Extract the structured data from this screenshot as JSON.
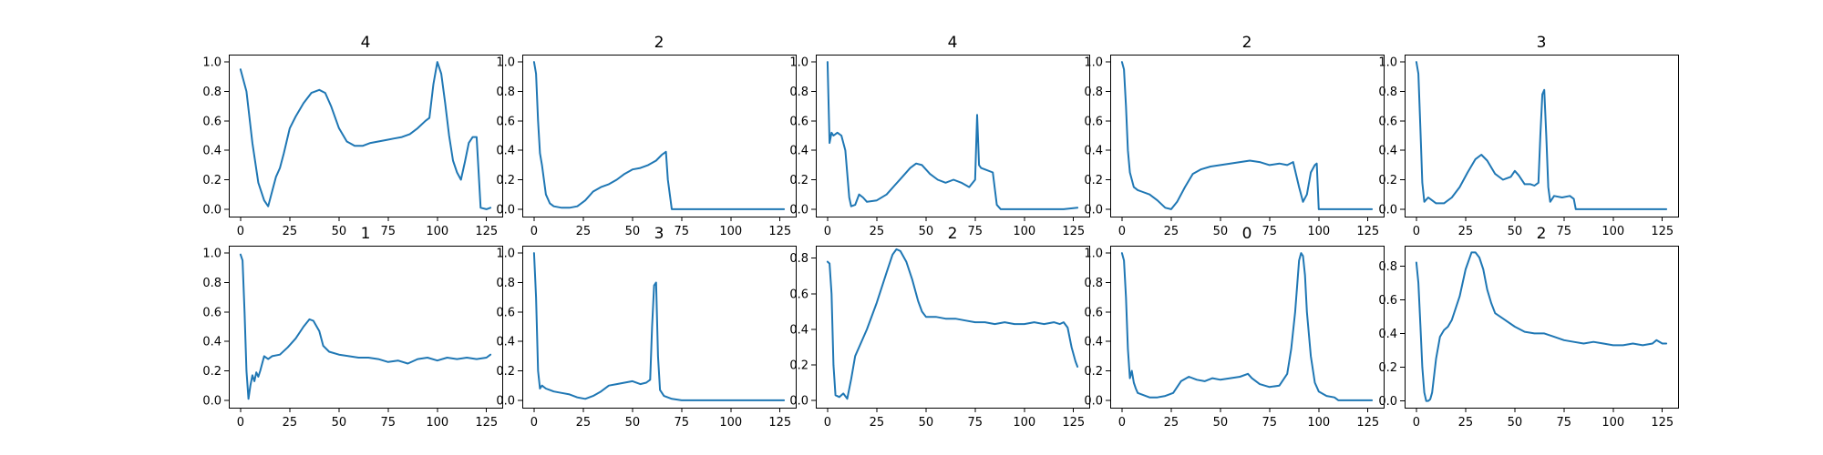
{
  "colors": {
    "series": "#1f77b4"
  },
  "chart_data": [
    {
      "type": "line",
      "title": "4",
      "xlim": [
        -6,
        133
      ],
      "ylim": [
        -0.05,
        1.05
      ],
      "xticks": [
        0,
        25,
        50,
        75,
        100,
        125
      ],
      "yticks": [
        0.0,
        0.2,
        0.4,
        0.6,
        0.8,
        1.0
      ],
      "series": [
        {
          "x": [
            0,
            3,
            6,
            9,
            12,
            14,
            16,
            18,
            20,
            22,
            25,
            28,
            32,
            36,
            40,
            43,
            46,
            50,
            54,
            58,
            62,
            66,
            70,
            74,
            78,
            82,
            86,
            90,
            94,
            96,
            98,
            100,
            102,
            104,
            106,
            108,
            110,
            112,
            114,
            116,
            118,
            120,
            122,
            125,
            127
          ],
          "y": [
            0.95,
            0.8,
            0.45,
            0.18,
            0.06,
            0.02,
            0.12,
            0.22,
            0.28,
            0.38,
            0.55,
            0.63,
            0.72,
            0.79,
            0.81,
            0.79,
            0.7,
            0.55,
            0.46,
            0.43,
            0.43,
            0.45,
            0.46,
            0.47,
            0.48,
            0.49,
            0.51,
            0.55,
            0.6,
            0.62,
            0.85,
            1.0,
            0.92,
            0.72,
            0.5,
            0.33,
            0.25,
            0.2,
            0.32,
            0.45,
            0.49,
            0.49,
            0.01,
            0.0,
            0.01
          ]
        }
      ]
    },
    {
      "type": "line",
      "title": "2",
      "xlim": [
        -6,
        133
      ],
      "ylim": [
        -0.05,
        1.05
      ],
      "xticks": [
        0,
        25,
        50,
        75,
        100,
        125
      ],
      "yticks": [
        0.0,
        0.2,
        0.4,
        0.6,
        0.8,
        1.0
      ],
      "series": [
        {
          "x": [
            0,
            1,
            2,
            3,
            4,
            6,
            8,
            10,
            14,
            18,
            22,
            26,
            30,
            34,
            38,
            42,
            46,
            50,
            54,
            58,
            62,
            65,
            67,
            68,
            70,
            80,
            90,
            100,
            110,
            120,
            127
          ],
          "y": [
            1.0,
            0.92,
            0.6,
            0.38,
            0.3,
            0.1,
            0.04,
            0.02,
            0.01,
            0.01,
            0.02,
            0.06,
            0.12,
            0.15,
            0.17,
            0.2,
            0.24,
            0.27,
            0.28,
            0.3,
            0.33,
            0.37,
            0.39,
            0.2,
            0.0,
            0.0,
            0.0,
            0.0,
            0.0,
            0.0,
            0.0
          ]
        }
      ]
    },
    {
      "type": "line",
      "title": "4",
      "xlim": [
        -6,
        133
      ],
      "ylim": [
        -0.05,
        1.05
      ],
      "xticks": [
        0,
        25,
        50,
        75,
        100,
        125
      ],
      "yticks": [
        0.0,
        0.2,
        0.4,
        0.6,
        0.8,
        1.0
      ],
      "series": [
        {
          "x": [
            0,
            1,
            2,
            3,
            5,
            7,
            9,
            11,
            12,
            14,
            16,
            18,
            20,
            25,
            30,
            34,
            38,
            42,
            45,
            48,
            52,
            56,
            60,
            64,
            68,
            72,
            75,
            76,
            77,
            78,
            80,
            84,
            86,
            88,
            90,
            100,
            110,
            120,
            127
          ],
          "y": [
            1.0,
            0.45,
            0.52,
            0.5,
            0.52,
            0.5,
            0.4,
            0.08,
            0.02,
            0.03,
            0.1,
            0.08,
            0.05,
            0.06,
            0.1,
            0.16,
            0.22,
            0.28,
            0.31,
            0.3,
            0.24,
            0.2,
            0.18,
            0.2,
            0.18,
            0.15,
            0.2,
            0.64,
            0.3,
            0.28,
            0.27,
            0.25,
            0.03,
            0.0,
            0.0,
            0.0,
            0.0,
            0.0,
            0.01
          ]
        }
      ]
    },
    {
      "type": "line",
      "title": "2",
      "xlim": [
        -6,
        133
      ],
      "ylim": [
        -0.05,
        1.05
      ],
      "xticks": [
        0,
        25,
        50,
        75,
        100,
        125
      ],
      "yticks": [
        0.0,
        0.2,
        0.4,
        0.6,
        0.8,
        1.0
      ],
      "series": [
        {
          "x": [
            0,
            1,
            2,
            3,
            4,
            6,
            8,
            10,
            14,
            18,
            22,
            25,
            28,
            32,
            36,
            40,
            45,
            50,
            55,
            60,
            65,
            70,
            75,
            80,
            84,
            87,
            90,
            92,
            94,
            96,
            98,
            99,
            100,
            110,
            120,
            127
          ],
          "y": [
            1.0,
            0.95,
            0.7,
            0.4,
            0.25,
            0.15,
            0.13,
            0.12,
            0.1,
            0.06,
            0.01,
            0.0,
            0.05,
            0.15,
            0.24,
            0.27,
            0.29,
            0.3,
            0.31,
            0.32,
            0.33,
            0.32,
            0.3,
            0.31,
            0.3,
            0.32,
            0.15,
            0.05,
            0.1,
            0.25,
            0.3,
            0.31,
            0.0,
            0.0,
            0.0,
            0.0
          ]
        }
      ]
    },
    {
      "type": "line",
      "title": "3",
      "xlim": [
        -6,
        133
      ],
      "ylim": [
        -0.05,
        1.05
      ],
      "xticks": [
        0,
        25,
        50,
        75,
        100,
        125
      ],
      "yticks": [
        0.0,
        0.2,
        0.4,
        0.6,
        0.8,
        1.0
      ],
      "series": [
        {
          "x": [
            0,
            1,
            2,
            3,
            4,
            6,
            8,
            10,
            14,
            18,
            22,
            26,
            30,
            33,
            36,
            40,
            44,
            48,
            50,
            52,
            55,
            58,
            60,
            62,
            63,
            64,
            65,
            66,
            67,
            68,
            70,
            74,
            78,
            80,
            81,
            90,
            100,
            110,
            120,
            127
          ],
          "y": [
            1.0,
            0.92,
            0.55,
            0.18,
            0.05,
            0.08,
            0.06,
            0.04,
            0.04,
            0.08,
            0.15,
            0.25,
            0.34,
            0.37,
            0.33,
            0.24,
            0.2,
            0.22,
            0.26,
            0.23,
            0.17,
            0.17,
            0.16,
            0.18,
            0.5,
            0.78,
            0.81,
            0.5,
            0.15,
            0.05,
            0.09,
            0.08,
            0.09,
            0.07,
            0.0,
            0.0,
            0.0,
            0.0,
            0.0,
            0.0
          ]
        }
      ]
    },
    {
      "type": "line",
      "title": "1",
      "xlim": [
        -6,
        133
      ],
      "ylim": [
        -0.05,
        1.05
      ],
      "xticks": [
        0,
        25,
        50,
        75,
        100,
        125
      ],
      "yticks": [
        0.0,
        0.2,
        0.4,
        0.6,
        0.8,
        1.0
      ],
      "series": [
        {
          "x": [
            0,
            1,
            2,
            3,
            4,
            5,
            6,
            7,
            8,
            9,
            10,
            12,
            14,
            16,
            20,
            24,
            28,
            32,
            35,
            37,
            40,
            42,
            45,
            50,
            55,
            60,
            65,
            70,
            75,
            80,
            85,
            90,
            95,
            100,
            105,
            110,
            115,
            120,
            125,
            127
          ],
          "y": [
            0.99,
            0.95,
            0.6,
            0.2,
            0.01,
            0.1,
            0.17,
            0.13,
            0.19,
            0.16,
            0.2,
            0.3,
            0.28,
            0.3,
            0.31,
            0.36,
            0.42,
            0.5,
            0.55,
            0.54,
            0.47,
            0.37,
            0.33,
            0.31,
            0.3,
            0.29,
            0.29,
            0.28,
            0.26,
            0.27,
            0.25,
            0.28,
            0.29,
            0.27,
            0.29,
            0.28,
            0.29,
            0.28,
            0.29,
            0.31
          ]
        }
      ]
    },
    {
      "type": "line",
      "title": "3",
      "xlim": [
        -6,
        133
      ],
      "ylim": [
        -0.05,
        1.05
      ],
      "xticks": [
        0,
        25,
        50,
        75,
        100,
        125
      ],
      "yticks": [
        0.0,
        0.2,
        0.4,
        0.6,
        0.8,
        1.0
      ],
      "series": [
        {
          "x": [
            0,
            1,
            2,
            3,
            4,
            6,
            8,
            10,
            14,
            18,
            22,
            26,
            30,
            34,
            38,
            42,
            46,
            50,
            54,
            57,
            59,
            60,
            61,
            62,
            63,
            64,
            66,
            70,
            75,
            80,
            90,
            100,
            110,
            120,
            127
          ],
          "y": [
            1.0,
            0.7,
            0.2,
            0.08,
            0.1,
            0.08,
            0.07,
            0.06,
            0.05,
            0.04,
            0.02,
            0.01,
            0.03,
            0.06,
            0.1,
            0.11,
            0.12,
            0.13,
            0.11,
            0.12,
            0.14,
            0.5,
            0.78,
            0.8,
            0.3,
            0.07,
            0.03,
            0.01,
            0.0,
            0.0,
            0.0,
            0.0,
            0.0,
            0.0,
            0.0
          ]
        }
      ]
    },
    {
      "type": "line",
      "title": "2",
      "xlim": [
        -6,
        133
      ],
      "ylim": [
        -0.04,
        0.87
      ],
      "xticks": [
        0,
        25,
        50,
        75,
        100,
        125
      ],
      "yticks": [
        0.0,
        0.2,
        0.4,
        0.6,
        0.8
      ],
      "series": [
        {
          "x": [
            0,
            1,
            2,
            3,
            4,
            6,
            8,
            10,
            12,
            14,
            16,
            20,
            25,
            30,
            33,
            35,
            37,
            40,
            43,
            46,
            48,
            50,
            55,
            60,
            65,
            70,
            75,
            80,
            85,
            90,
            95,
            100,
            105,
            110,
            115,
            118,
            120,
            122,
            124,
            126,
            127
          ],
          "y": [
            0.78,
            0.77,
            0.6,
            0.2,
            0.03,
            0.02,
            0.04,
            0.01,
            0.12,
            0.25,
            0.3,
            0.4,
            0.55,
            0.72,
            0.82,
            0.85,
            0.84,
            0.78,
            0.68,
            0.56,
            0.5,
            0.47,
            0.47,
            0.46,
            0.46,
            0.45,
            0.44,
            0.44,
            0.43,
            0.44,
            0.43,
            0.43,
            0.44,
            0.43,
            0.44,
            0.43,
            0.44,
            0.41,
            0.3,
            0.22,
            0.19
          ]
        }
      ]
    },
    {
      "type": "line",
      "title": "0",
      "xlim": [
        -6,
        133
      ],
      "ylim": [
        -0.05,
        1.05
      ],
      "xticks": [
        0,
        25,
        50,
        75,
        100,
        125
      ],
      "yticks": [
        0.0,
        0.2,
        0.4,
        0.6,
        0.8,
        1.0
      ],
      "series": [
        {
          "x": [
            0,
            1,
            2,
            3,
            4,
            5,
            6,
            7,
            8,
            10,
            14,
            18,
            22,
            26,
            30,
            34,
            38,
            42,
            46,
            50,
            55,
            60,
            64,
            66,
            70,
            75,
            80,
            84,
            86,
            88,
            90,
            91,
            92,
            93,
            94,
            96,
            98,
            100,
            104,
            108,
            110,
            120,
            127
          ],
          "y": [
            1.0,
            0.95,
            0.7,
            0.35,
            0.15,
            0.2,
            0.12,
            0.08,
            0.05,
            0.04,
            0.02,
            0.02,
            0.03,
            0.05,
            0.13,
            0.16,
            0.14,
            0.13,
            0.15,
            0.14,
            0.15,
            0.16,
            0.18,
            0.15,
            0.11,
            0.09,
            0.1,
            0.18,
            0.35,
            0.6,
            0.95,
            1.0,
            0.98,
            0.85,
            0.6,
            0.3,
            0.12,
            0.06,
            0.03,
            0.02,
            0.0,
            0.0,
            0.0
          ]
        }
      ]
    },
    {
      "type": "line",
      "title": "2",
      "xlim": [
        -6,
        133
      ],
      "ylim": [
        -0.04,
        0.92
      ],
      "xticks": [
        0,
        25,
        50,
        75,
        100,
        125
      ],
      "yticks": [
        0.0,
        0.2,
        0.4,
        0.6,
        0.8
      ],
      "series": [
        {
          "x": [
            0,
            1,
            2,
            3,
            4,
            5,
            6,
            7,
            8,
            10,
            12,
            14,
            16,
            18,
            20,
            22,
            25,
            28,
            30,
            32,
            34,
            36,
            38,
            40,
            45,
            50,
            55,
            60,
            65,
            70,
            75,
            80,
            85,
            90,
            95,
            100,
            105,
            110,
            115,
            120,
            122,
            125,
            127
          ],
          "y": [
            0.82,
            0.7,
            0.45,
            0.2,
            0.05,
            0.0,
            0.0,
            0.01,
            0.05,
            0.25,
            0.38,
            0.42,
            0.44,
            0.48,
            0.55,
            0.62,
            0.78,
            0.88,
            0.88,
            0.85,
            0.78,
            0.66,
            0.58,
            0.52,
            0.48,
            0.44,
            0.41,
            0.4,
            0.4,
            0.38,
            0.36,
            0.35,
            0.34,
            0.35,
            0.34,
            0.33,
            0.33,
            0.34,
            0.33,
            0.34,
            0.36,
            0.34,
            0.34
          ]
        }
      ]
    }
  ]
}
